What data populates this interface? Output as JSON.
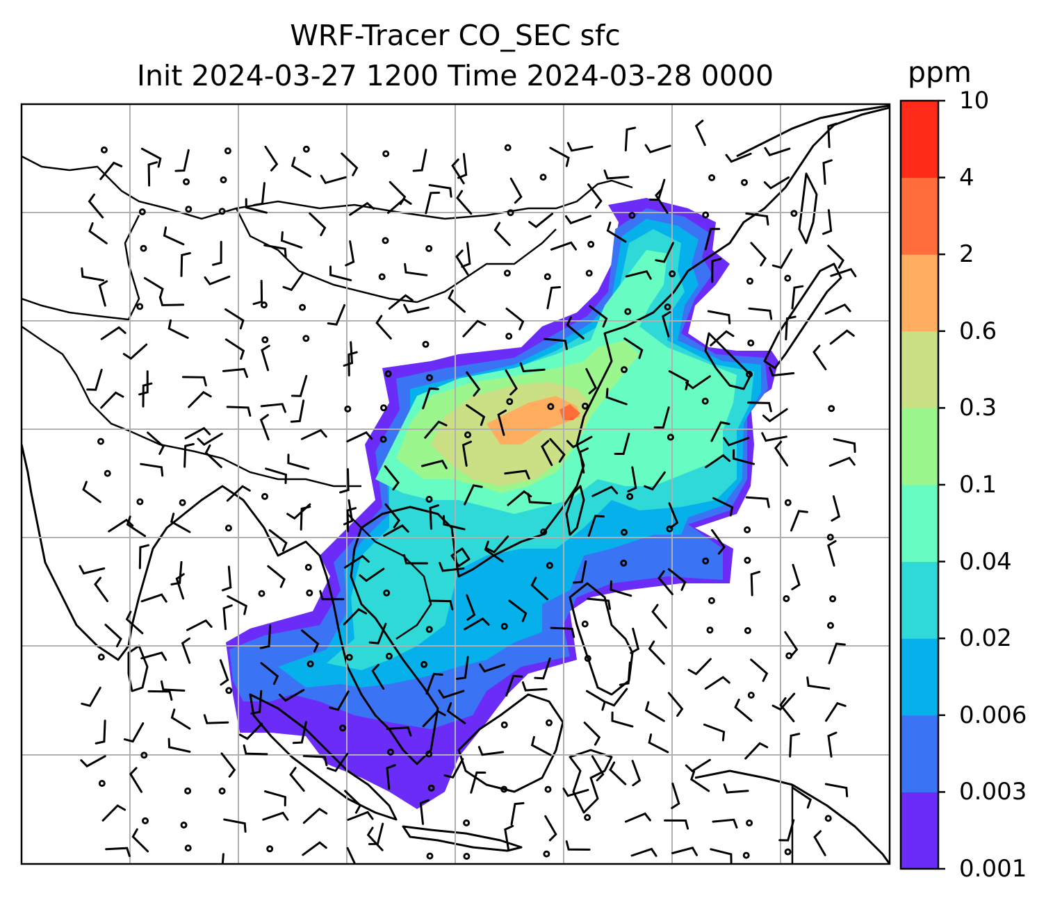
{
  "title": {
    "line1": "WRF-Tracer CO_SEC sfc",
    "line2": "Init 2024-03-27 1200 Time 2024-03-28 0000"
  },
  "colorbar": {
    "units": "ppm",
    "levels": [
      "0.001",
      "0.003",
      "0.006",
      "0.02",
      "0.04",
      "0.1",
      "0.3",
      "0.6",
      "2",
      "4",
      "10"
    ],
    "colors": [
      "#6a2cf6",
      "#3a73f4",
      "#06b0ea",
      "#2ed9d8",
      "#67fcc2",
      "#9bf68d",
      "#cbdf85",
      "#ffae5f",
      "#ff6d3a",
      "#ff2a17"
    ]
  },
  "map": {
    "field": "CO_SEC surface tracer concentration",
    "wind_symbols": "wind barbs",
    "gridlines": true
  },
  "colors": {
    "coastline": "#000000",
    "gridline": "#b0b0b0",
    "background": "#ffffff"
  }
}
